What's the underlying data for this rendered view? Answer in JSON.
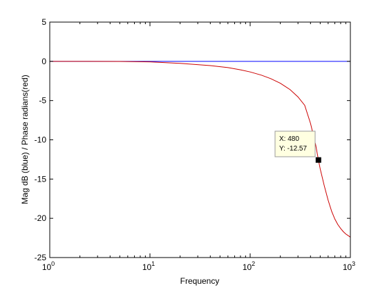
{
  "chart_data": {
    "type": "line",
    "title": "",
    "xlabel": "Frequency",
    "ylabel": "Mag dB (blue) / Phase radians(red)",
    "xscale": "log",
    "xlim": [
      1,
      1000
    ],
    "ylim": [
      -25,
      5
    ],
    "y_ticks": [
      "5",
      "0",
      "-5",
      "-10",
      "-15",
      "-20",
      "-25"
    ],
    "x_ticks": [
      {
        "base": "10",
        "exp": "0"
      },
      {
        "base": "10",
        "exp": "1"
      },
      {
        "base": "10",
        "exp": "2"
      },
      {
        "base": "10",
        "exp": "3"
      }
    ],
    "grid": false,
    "colors": {
      "magnitude": "#0000ff",
      "phase": "#cc0000"
    },
    "series": [
      {
        "color": "#0000ff",
        "x": [
          1,
          1000
        ],
        "y": [
          0,
          0
        ]
      },
      {
        "color": "#cc0000",
        "x": [
          1,
          2,
          5,
          10,
          20,
          40,
          60,
          80,
          100,
          130,
          160,
          200,
          250,
          300,
          350,
          400,
          450,
          480,
          500,
          550,
          600,
          650,
          700,
          750,
          800,
          850,
          900,
          950,
          1000
        ],
        "y": [
          0,
          0,
          -0.02,
          -0.07,
          -0.26,
          -0.54,
          -0.8,
          -1.08,
          -1.35,
          -1.77,
          -2.2,
          -2.79,
          -3.6,
          -4.53,
          -5.6,
          -7.9,
          -10.6,
          -12.57,
          -13.7,
          -15.9,
          -17.7,
          -19.1,
          -20.1,
          -20.8,
          -21.3,
          -21.7,
          -22.0,
          -22.2,
          -22.4
        ]
      }
    ],
    "datatip": {
      "x": 480,
      "y": -12.57,
      "x_label": "X: 480",
      "y_label": "Y: -12.57"
    }
  }
}
